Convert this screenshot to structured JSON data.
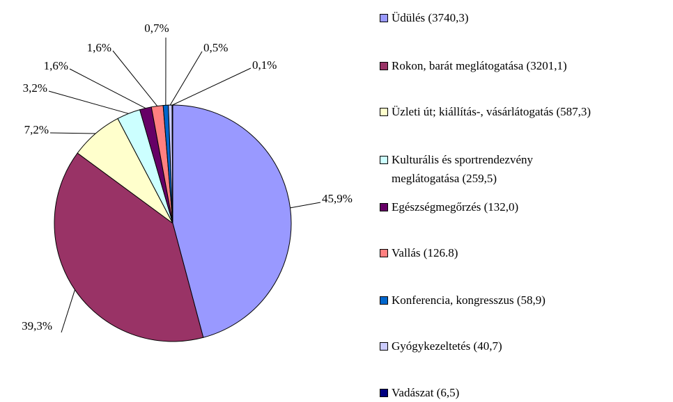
{
  "chart_data": {
    "type": "pie",
    "categories": [
      "Üdülés (3740,3)",
      "Rokon, barát meglátogatása (3201,1)",
      "Üzleti út; kiállítás-, vásárlátogatás (587,3)",
      "Kulturális és sportrendezvény\nmeglátogatása (259,5)",
      "Egészségmegőrzés (132,0)",
      "Vallás (126.8)",
      "Konferencia, kongresszus (58,9)",
      "Gyógykezeltetés (40,7)",
      "Vadászat (6,5)"
    ],
    "values": [
      45.9,
      39.3,
      7.2,
      3.2,
      1.6,
      1.6,
      0.7,
      0.5,
      0.1
    ],
    "value_labels": [
      "45,9%",
      "39,3%",
      "7,2%",
      "3,2%",
      "1,6%",
      "1,6%",
      "0,7%",
      "0,5%",
      "0,1%"
    ],
    "colors": [
      "#9999ff",
      "#993366",
      "#ffffcc",
      "#ccffff",
      "#660066",
      "#ff8080",
      "#0066cc",
      "#ccccff",
      "#000080"
    ],
    "legend": "right"
  }
}
